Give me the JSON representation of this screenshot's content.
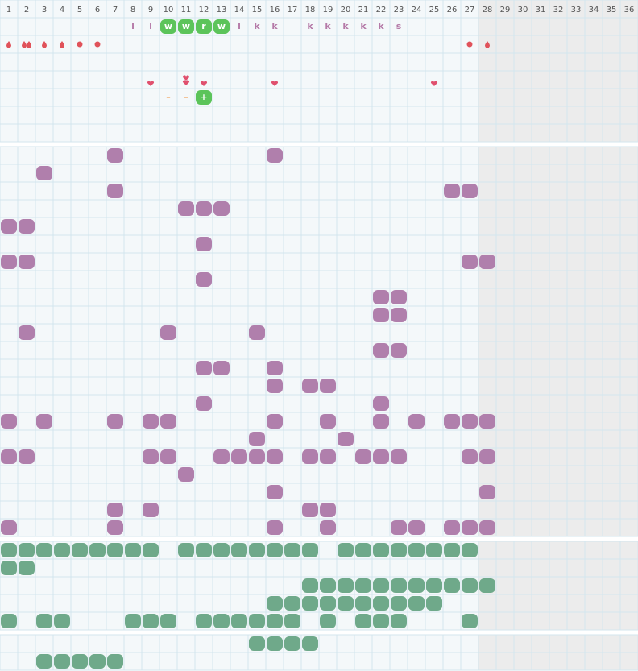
{
  "header": {
    "days": [
      1,
      2,
      3,
      4,
      5,
      6,
      7,
      8,
      9,
      10,
      11,
      12,
      13,
      14,
      15,
      16,
      17,
      18,
      19,
      20,
      21,
      22,
      23,
      24,
      25,
      26,
      27,
      28,
      29,
      30,
      31,
      32,
      33,
      34,
      35,
      36
    ]
  },
  "activity_row": [
    "l",
    "l",
    "w",
    "w",
    "r",
    "w",
    "l",
    "k",
    "k",
    "k",
    "k",
    "k",
    "k",
    "k",
    "s"
  ],
  "notes_row": [
    "–",
    "–",
    "+"
  ]
}
